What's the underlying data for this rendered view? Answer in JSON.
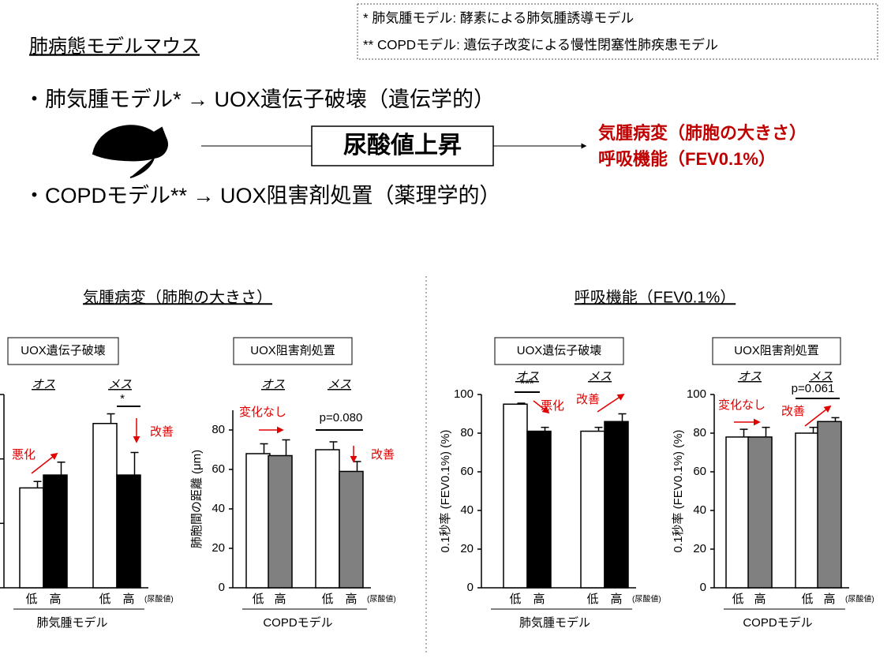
{
  "header": {
    "title": "肺病態モデルマウス",
    "notes": [
      "* 肺気腫モデル: 酵素による肺気腫誘導モデル",
      "** COPDモデル: 遺伝子改変による慢性閉塞性肺疾患モデル"
    ],
    "items": [
      "・肺気腫モデル* → UOX遺伝子破壊（遺伝学的）",
      "・COPDモデル** → UOX阻害剤処置（薬理学的）"
    ],
    "center": "尿酸値上昇",
    "outcomes": [
      "気腫病変（肺胞の大きさ）",
      "呼吸機能（FEV0.1%）"
    ]
  },
  "sections": [
    "気腫病変（肺胞の大きさ）",
    "呼吸機能（FEV0.1%）"
  ],
  "chart_data": [
    {
      "type": "bar",
      "box_label": "UOX遺伝子破壊",
      "groups": [
        "オス",
        "メス"
      ],
      "categories": [
        "低",
        "高",
        "低",
        "高"
      ],
      "unit_note": "(尿酸値)",
      "xlabel": "肺気腫モデル",
      "values": [
        31,
        35,
        51,
        35
      ],
      "errors": [
        2,
        4,
        3,
        7
      ],
      "colors": [
        "#ffffff",
        "#000000",
        "#ffffff",
        "#000000"
      ],
      "ylim": [
        0,
        60
      ],
      "yticks": [
        0,
        20,
        40,
        60
      ],
      "annotations": [
        {
          "text": "悪化",
          "color": "#e00000"
        },
        {
          "text": "改善",
          "color": "#e00000"
        },
        {
          "text": "*",
          "color": "#000000"
        }
      ]
    },
    {
      "type": "bar",
      "box_label": "UOX阻害剤処置",
      "groups": [
        "オス",
        "メス"
      ],
      "categories": [
        "低",
        "高",
        "低",
        "高"
      ],
      "unit_note": "(尿酸値)",
      "xlabel": "COPDモデル",
      "ylabel": "肺胞間の距離 (μm)",
      "values": [
        68,
        67,
        70,
        59
      ],
      "errors": [
        5,
        8,
        4,
        5
      ],
      "colors": [
        "#ffffff",
        "#808080",
        "#ffffff",
        "#808080"
      ],
      "ylim": [
        0,
        90
      ],
      "yticks": [
        0,
        20,
        40,
        60,
        80
      ],
      "annotations": [
        {
          "text": "変化なし",
          "color": "#e00000"
        },
        {
          "text": "p=0.080",
          "color": "#000000"
        },
        {
          "text": "改善",
          "color": "#e00000"
        }
      ]
    },
    {
      "type": "bar",
      "box_label": "UOX遺伝子破壊",
      "groups": [
        "オス",
        "メス"
      ],
      "categories": [
        "低",
        "高",
        "低",
        "高"
      ],
      "unit_note": "(尿酸値)",
      "xlabel": "肺気腫モデル",
      "ylabel": "0.1秒率 (FEV0.1%) (%)",
      "values": [
        95,
        81,
        81,
        86
      ],
      "errors": [
        0.5,
        2,
        2,
        4
      ],
      "colors": [
        "#ffffff",
        "#000000",
        "#ffffff",
        "#000000"
      ],
      "ylim": [
        0,
        100
      ],
      "yticks": [
        0,
        20,
        40,
        60,
        80,
        100
      ],
      "annotations": [
        {
          "text": "***",
          "color": "#000000"
        },
        {
          "text": "悪化",
          "color": "#e00000"
        },
        {
          "text": "改善",
          "color": "#e00000"
        }
      ]
    },
    {
      "type": "bar",
      "box_label": "UOX阻害剤処置",
      "groups": [
        "オス",
        "メス"
      ],
      "categories": [
        "低",
        "高",
        "低",
        "高"
      ],
      "unit_note": "(尿酸値)",
      "xlabel": "COPDモデル",
      "ylabel": "0.1秒率 (FEV0.1%) (%)",
      "values": [
        78,
        78,
        80,
        86
      ],
      "errors": [
        4,
        5,
        3,
        2
      ],
      "colors": [
        "#ffffff",
        "#808080",
        "#ffffff",
        "#808080"
      ],
      "ylim": [
        0,
        100
      ],
      "yticks": [
        0,
        20,
        40,
        60,
        80,
        100
      ],
      "annotations": [
        {
          "text": "変化なし",
          "color": "#e00000"
        },
        {
          "text": "p=0.061",
          "color": "#000000"
        },
        {
          "text": "改善",
          "color": "#e00000"
        }
      ]
    }
  ]
}
